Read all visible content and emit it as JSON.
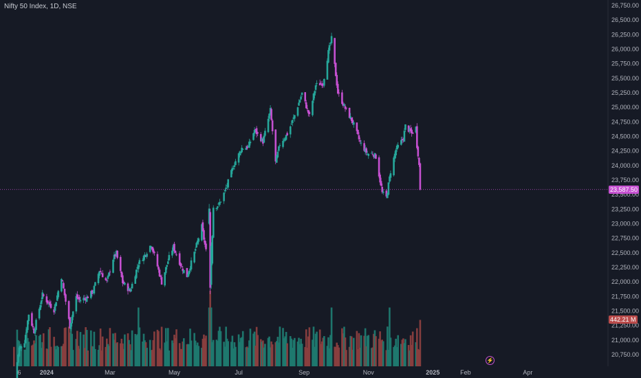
{
  "header": {
    "symbol_line": "Nifty 50 Index, 1D, NSE"
  },
  "colors": {
    "background": "#161a25",
    "up": "#26a69a",
    "down": "#c550d0",
    "volume_up": "#1f7a70",
    "volume_down": "#8b3f3f",
    "last_price": "#c550d0",
    "volume_badge": "#b84a4a",
    "text": "#d1d4dc"
  },
  "badges": {
    "last_price": "23,587.50",
    "last_volume": "442.21 M"
  },
  "chart_data": {
    "type": "candlestick",
    "title": "Nifty 50 Index, 1D, NSE",
    "y_ticks": [
      "26,750.00",
      "26,500.00",
      "26,250.00",
      "26,000.00",
      "25,750.00",
      "25,500.00",
      "25,250.00",
      "25,000.00",
      "24,750.00",
      "24,500.00",
      "24,250.00",
      "24,000.00",
      "23,750.00",
      "23,500.00",
      "23,250.00",
      "23,000.00",
      "22,750.00",
      "22,500.00",
      "22,250.00",
      "22,000.00",
      "21,750.00",
      "21,500.00",
      "21,250.00",
      "21,000.00",
      "20,750.00"
    ],
    "x_ticks": [
      "6",
      "2024",
      "Mar",
      "May",
      "Jul",
      "Sep",
      "Nov",
      "2025",
      "Feb",
      "Apr"
    ],
    "ylim": [
      20620,
      26820
    ],
    "last_price": 23587.5,
    "last_volume_m": 442.21,
    "close_path": [
      [
        "2023-12-01",
        20270
      ],
      [
        "2023-12-06",
        20860
      ],
      [
        "2023-12-11",
        20980
      ],
      [
        "2023-12-15",
        21450
      ],
      [
        "2023-12-20",
        21150
      ],
      [
        "2023-12-28",
        21780
      ],
      [
        "2024-01-02",
        21650
      ],
      [
        "2024-01-08",
        21520
      ],
      [
        "2024-01-15",
        22090
      ],
      [
        "2024-01-23",
        21240
      ],
      [
        "2024-01-29",
        21740
      ],
      [
        "2024-02-01",
        21690
      ],
      [
        "2024-02-08",
        21730
      ],
      [
        "2024-02-14",
        21840
      ],
      [
        "2024-02-20",
        22200
      ],
      [
        "2024-02-27",
        22000
      ],
      [
        "2024-03-04",
        22400
      ],
      [
        "2024-03-07",
        22490
      ],
      [
        "2024-03-13",
        21990
      ],
      [
        "2024-03-20",
        21840
      ],
      [
        "2024-03-28",
        22320
      ],
      [
        "2024-04-03",
        22460
      ],
      [
        "2024-04-09",
        22650
      ],
      [
        "2024-04-15",
        22270
      ],
      [
        "2024-04-19",
        21990
      ],
      [
        "2024-04-26",
        22420
      ],
      [
        "2024-04-30",
        22600
      ],
      [
        "2024-05-08",
        22250
      ],
      [
        "2024-05-13",
        22100
      ],
      [
        "2024-05-20",
        22500
      ],
      [
        "2024-05-27",
        22950
      ],
      [
        "2024-05-31",
        22530
      ],
      [
        "2024-06-03",
        23260
      ],
      [
        "2024-06-04",
        21880
      ],
      [
        "2024-06-07",
        23290
      ],
      [
        "2024-06-12",
        23320
      ],
      [
        "2024-06-18",
        23560
      ],
      [
        "2024-06-27",
        24040
      ],
      [
        "2024-07-04",
        24300
      ],
      [
        "2024-07-10",
        24320
      ],
      [
        "2024-07-16",
        24610
      ],
      [
        "2024-07-24",
        24410
      ],
      [
        "2024-07-31",
        24950
      ],
      [
        "2024-08-05",
        24050
      ],
      [
        "2024-08-09",
        24370
      ],
      [
        "2024-08-16",
        24540
      ],
      [
        "2024-08-22",
        24810
      ],
      [
        "2024-08-30",
        25240
      ],
      [
        "2024-09-06",
        24850
      ],
      [
        "2024-09-12",
        25380
      ],
      [
        "2024-09-19",
        25420
      ],
      [
        "2024-09-24",
        25950
      ],
      [
        "2024-09-27",
        26180
      ],
      [
        "2024-10-03",
        25250
      ],
      [
        "2024-10-10",
        24980
      ],
      [
        "2024-10-17",
        24750
      ],
      [
        "2024-10-24",
        24400
      ],
      [
        "2024-10-31",
        24200
      ],
      [
        "2024-11-05",
        24210
      ],
      [
        "2024-11-08",
        24150
      ],
      [
        "2024-11-14",
        23530
      ],
      [
        "2024-11-18",
        23450
      ],
      [
        "2024-11-22",
        23900
      ],
      [
        "2024-11-27",
        24270
      ],
      [
        "2024-12-04",
        24470
      ],
      [
        "2024-12-06",
        24680
      ],
      [
        "2024-12-12",
        24550
      ],
      [
        "2024-12-16",
        24650
      ],
      [
        "2024-12-17",
        24340
      ],
      [
        "2024-12-18",
        24200
      ],
      [
        "2024-12-19",
        24000
      ],
      [
        "2024-12-20",
        23587.5
      ]
    ],
    "volume_m_range": [
      100,
      720
    ]
  }
}
